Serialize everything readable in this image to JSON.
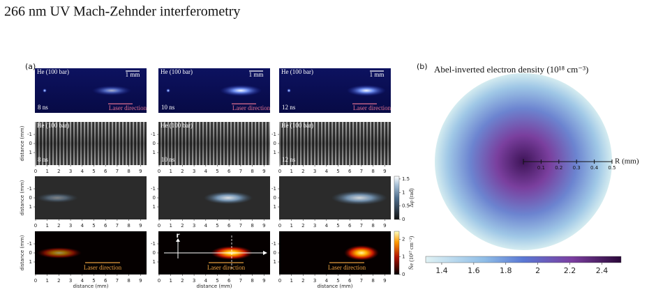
{
  "title": "266 nm UV Mach-Zehnder interferometry",
  "panel_a": {
    "label": "(a)",
    "gas": "He (100 bar)",
    "scale_bar": "1 mm",
    "laser_direction": "Laser direction",
    "times": [
      "8 ns",
      "10 ns",
      "12 ns"
    ],
    "axis_label": "distance (mm)",
    "xticks": [
      0,
      1,
      2,
      3,
      4,
      5,
      6,
      7,
      8,
      9
    ],
    "yticks": [
      -1,
      0,
      1
    ],
    "phase_colorbar": {
      "label": "Δφ (rad)",
      "ylim": [
        0,
        1.6
      ],
      "yticks": [
        0,
        0.5,
        1,
        1.5
      ]
    },
    "density_colorbar": {
      "label": "N̄e (10¹⁷ cm⁻²)",
      "ylim": [
        0,
        2.45
      ],
      "yticks": [
        0,
        1,
        2
      ]
    },
    "r_label": "r",
    "z_label": "z"
  },
  "panel_b": {
    "label": "(b)",
    "title": "Abel-inverted electron density (10¹⁸ cm⁻³)",
    "radial_axis": {
      "label": "R (mm)",
      "xlim": [
        0,
        0.5
      ],
      "xticks": [
        0.1,
        0.2,
        0.3,
        0.4,
        0.5
      ]
    },
    "colorbar": {
      "xlim": [
        1.3,
        2.52
      ],
      "xticks": [
        1.4,
        1.6,
        1.8,
        2,
        2.2,
        2.4
      ]
    }
  }
}
